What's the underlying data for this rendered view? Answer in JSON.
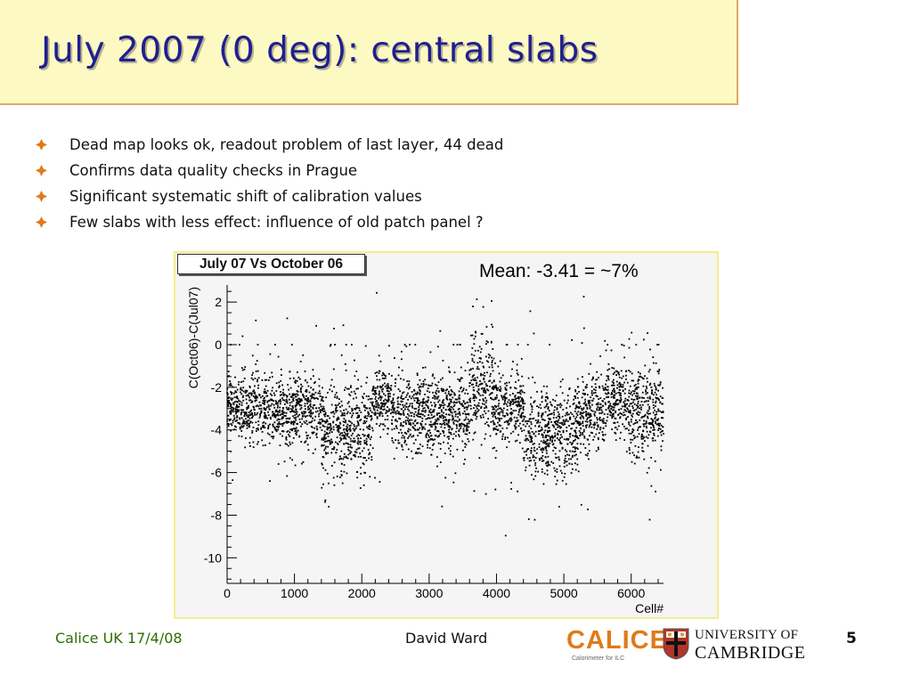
{
  "slide": {
    "title": "July 2007 (0 deg): central slabs",
    "bullets": [
      "Dead map looks ok, readout problem of last layer, 44 dead",
      "Confirms data quality checks in Prague",
      "Significant systematic shift of calibration values",
      "Few slabs with less effect: influence of old patch panel ?"
    ],
    "mean_annotation": "Mean: -3.41 = ~7%",
    "footer": {
      "left": "Calice UK 17/4/08",
      "center": "David Ward",
      "page_number": "5"
    },
    "logos": {
      "calice_text": "CALICE",
      "calice_subtitle": "Calorimeter for ILC",
      "cambridge_line1": "UNIVERSITY OF",
      "cambridge_line2": "CAMBRIDGE"
    }
  },
  "colors": {
    "title_text": "#1f1f8f",
    "title_bg": "#fdf9c3",
    "title_border": "#e1a85f",
    "bullet_icon": "#e07a1a",
    "footer_left": "#2d6e00",
    "calice_orange": "#e07a1a"
  },
  "chart_data": {
    "type": "scatter",
    "title": "July 07 Vs October 06",
    "xlabel": "Cell#",
    "ylabel": "C(Oct06)-C(Jul07)",
    "xlim": [
      0,
      6480
    ],
    "ylim": [
      -11.2,
      2.8
    ],
    "xticks": [
      0,
      1000,
      2000,
      3000,
      4000,
      5000,
      6000
    ],
    "yticks": [
      -10,
      -8,
      -6,
      -4,
      -2,
      0,
      2
    ],
    "grid": false,
    "mean": -3.41,
    "segments": [
      {
        "x": [
          0,
          500
        ],
        "mean": -3.0,
        "spread": 0.75
      },
      {
        "x": [
          500,
          1000
        ],
        "mean": -3.2,
        "spread": 0.8
      },
      {
        "x": [
          1000,
          1400
        ],
        "mean": -3.0,
        "spread": 0.8
      },
      {
        "x": [
          1400,
          2150
        ],
        "mean": -4.0,
        "spread": 1.05
      },
      {
        "x": [
          2150,
          2450
        ],
        "mean": -2.5,
        "spread": 0.8
      },
      {
        "x": [
          2450,
          3600
        ],
        "mean": -3.3,
        "spread": 0.9
      },
      {
        "x": [
          3600,
          3950
        ],
        "mean": -2.0,
        "spread": 1.25
      },
      {
        "x": [
          3950,
          4400
        ],
        "mean": -3.1,
        "spread": 0.9
      },
      {
        "x": [
          4400,
          5200
        ],
        "mean": -4.2,
        "spread": 1.0
      },
      {
        "x": [
          5200,
          5600
        ],
        "mean": -3.3,
        "spread": 0.9
      },
      {
        "x": [
          5600,
          5900
        ],
        "mean": -2.5,
        "spread": 0.9
      },
      {
        "x": [
          5900,
          6480
        ],
        "mean": -3.2,
        "spread": 1.05
      }
    ]
  }
}
